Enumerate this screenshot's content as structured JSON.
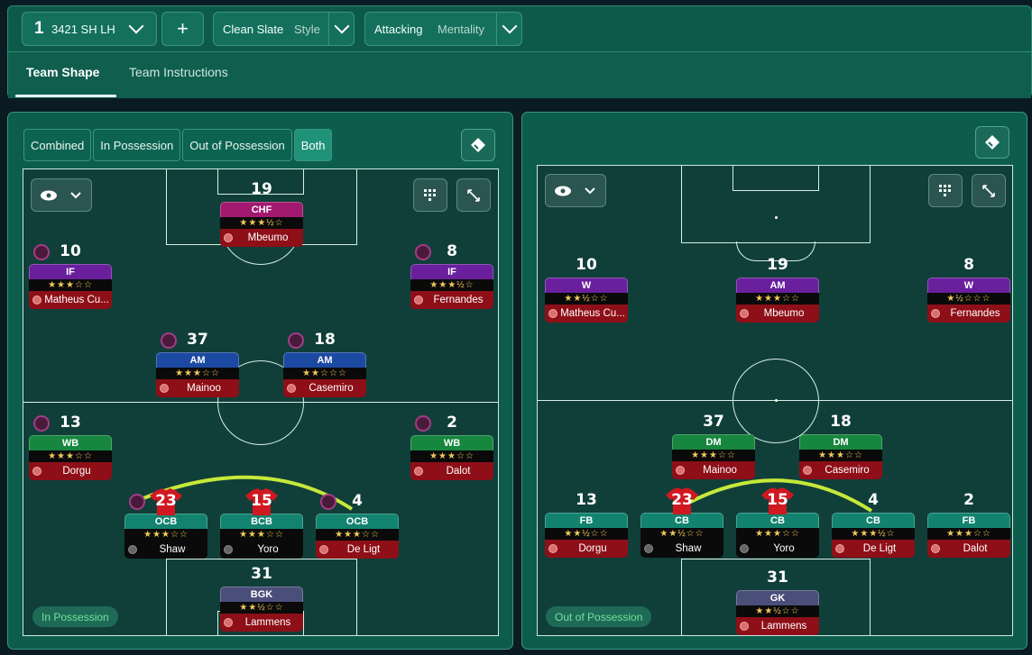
{
  "topbar": {
    "tactic_number": "1",
    "tactic_name": "3421 SH LH",
    "add_label": "+",
    "style_value": "Clean Slate",
    "style_label": "Style",
    "mentality_value": "Attacking",
    "mentality_label": "Mentality"
  },
  "tabs": [
    {
      "label": "Team Shape"
    },
    {
      "label": "Team Instructions"
    }
  ],
  "left_panel": {
    "filters": [
      "Combined",
      "In Possession",
      "Out of Possession",
      "Both"
    ],
    "badge": "In Possession",
    "players": [
      {
        "num": "19",
        "role": "CHF",
        "stars": "★★★½☆",
        "name": "Mbeumo"
      },
      {
        "num": "10",
        "role": "IF",
        "stars": "★★★☆☆",
        "name": "Matheus Cu..."
      },
      {
        "num": "8",
        "role": "IF",
        "stars": "★★★½☆",
        "name": "Fernandes"
      },
      {
        "num": "37",
        "role": "AM",
        "stars": "★★★☆☆",
        "name": "Mainoo"
      },
      {
        "num": "18",
        "role": "AM",
        "stars": "★★☆☆☆",
        "name": "Casemiro"
      },
      {
        "num": "13",
        "role": "WB",
        "stars": "★★★☆☆",
        "name": "Dorgu"
      },
      {
        "num": "2",
        "role": "WB",
        "stars": "★★★☆☆",
        "name": "Dalot"
      },
      {
        "num": "23",
        "role": "OCB",
        "stars": "★★★☆☆",
        "name": "Shaw"
      },
      {
        "num": "15",
        "role": "BCB",
        "stars": "★★★☆☆",
        "name": "Yoro"
      },
      {
        "num": "4",
        "role": "OCB",
        "stars": "★★★☆☆",
        "name": "De Ligt"
      },
      {
        "num": "31",
        "role": "BGK",
        "stars": "★★½☆☆",
        "name": "Lammens"
      }
    ]
  },
  "right_panel": {
    "badge": "Out of Possession",
    "players": [
      {
        "num": "10",
        "role": "W",
        "stars": "★★½☆☆",
        "name": "Matheus Cu..."
      },
      {
        "num": "19",
        "role": "AM",
        "stars": "★★★☆☆",
        "name": "Mbeumo"
      },
      {
        "num": "8",
        "role": "W",
        "stars": "★½☆☆☆",
        "name": "Fernandes"
      },
      {
        "num": "37",
        "role": "DM",
        "stars": "★★★☆☆",
        "name": "Mainoo"
      },
      {
        "num": "18",
        "role": "DM",
        "stars": "★★★☆☆",
        "name": "Casemiro"
      },
      {
        "num": "13",
        "role": "FB",
        "stars": "★★½☆☆",
        "name": "Dorgu"
      },
      {
        "num": "23",
        "role": "CB",
        "stars": "★★½☆☆",
        "name": "Shaw"
      },
      {
        "num": "15",
        "role": "CB",
        "stars": "★★★☆☆",
        "name": "Yoro"
      },
      {
        "num": "4",
        "role": "CB",
        "stars": "★★★½☆",
        "name": "De Ligt"
      },
      {
        "num": "2",
        "role": "FB",
        "stars": "★★★☆☆",
        "name": "Dalot"
      },
      {
        "num": "31",
        "role": "GK",
        "stars": "★★½☆☆",
        "name": "Lammens"
      }
    ]
  }
}
